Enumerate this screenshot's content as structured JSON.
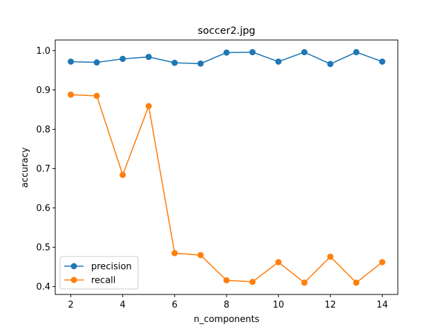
{
  "chart_data": {
    "type": "line",
    "title": "soccer2.jpg",
    "xlabel": "n_components",
    "ylabel": "accuracy",
    "xlim": [
      1.4,
      14.6
    ],
    "ylim": [
      0.38,
      1.027
    ],
    "xticks": [
      2,
      4,
      6,
      8,
      10,
      12,
      14
    ],
    "yticks": [
      0.4,
      0.5,
      0.6,
      0.7,
      0.8,
      0.9,
      1.0
    ],
    "ytick_labels": [
      "0.4",
      "0.5",
      "0.6",
      "0.7",
      "0.8",
      "0.9",
      "1.0"
    ],
    "x": [
      2,
      3,
      4,
      5,
      6,
      7,
      8,
      9,
      10,
      11,
      12,
      13,
      14
    ],
    "series": [
      {
        "name": "precision",
        "color": "#1f77b4",
        "values": [
          0.972,
          0.97,
          0.979,
          0.984,
          0.969,
          0.967,
          0.995,
          0.996,
          0.972,
          0.996,
          0.966,
          0.996,
          0.972
        ]
      },
      {
        "name": "recall",
        "color": "#ff7f0e",
        "values": [
          0.888,
          0.885,
          0.684,
          0.859,
          0.485,
          0.48,
          0.416,
          0.412,
          0.462,
          0.41,
          0.476,
          0.41,
          0.462
        ]
      }
    ],
    "legend_position": "lower-left",
    "grid": false
  }
}
